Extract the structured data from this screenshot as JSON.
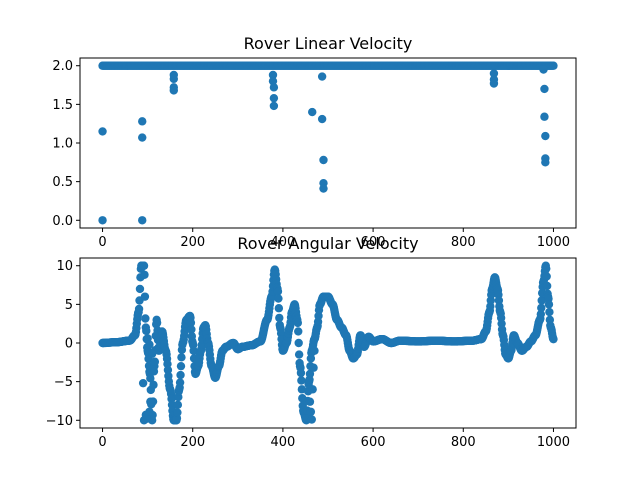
{
  "chart_data": [
    {
      "type": "scatter",
      "title": "Rover Linear Velocity",
      "xlabel": "",
      "ylabel": "",
      "xlim": [
        -50,
        1050
      ],
      "ylim": [
        -0.1,
        2.1
      ],
      "xticks": [
        0,
        200,
        400,
        600,
        800,
        1000
      ],
      "yticks": [
        0.0,
        0.5,
        1.0,
        1.5,
        2.0
      ],
      "ytick_labels": [
        "0.0",
        "0.5",
        "1.0",
        "1.5",
        "2.0"
      ],
      "grid": false,
      "color": "#1f77b4",
      "points": [
        [
          0,
          1.15
        ],
        [
          0,
          0.0
        ],
        [
          88,
          1.28
        ],
        [
          88,
          1.07
        ],
        [
          88,
          0.0
        ],
        [
          158,
          1.88
        ],
        [
          158,
          1.83
        ],
        [
          158,
          1.72
        ],
        [
          158,
          1.68
        ],
        [
          378,
          1.88
        ],
        [
          378,
          1.8
        ],
        [
          380,
          1.72
        ],
        [
          380,
          1.58
        ],
        [
          380,
          1.48
        ],
        [
          465,
          1.4
        ],
        [
          487,
          1.86
        ],
        [
          487,
          1.31
        ],
        [
          490,
          0.78
        ],
        [
          490,
          0.48
        ],
        [
          490,
          0.41
        ],
        [
          868,
          1.9
        ],
        [
          868,
          1.82
        ],
        [
          868,
          1.77
        ],
        [
          978,
          1.95
        ],
        [
          980,
          1.7
        ],
        [
          980,
          1.34
        ],
        [
          982,
          1.09
        ],
        [
          982,
          0.8
        ],
        [
          982,
          0.75
        ]
      ],
      "baseline_segment": {
        "x_start": 0,
        "x_end": 1000,
        "y": 2.0
      }
    },
    {
      "type": "scatter",
      "title": "Rover Angular Velocity",
      "xlabel": "",
      "ylabel": "",
      "xlim": [
        -50,
        1050
      ],
      "ylim": [
        -11,
        11
      ],
      "xticks": [
        0,
        200,
        400,
        600,
        800,
        1000
      ],
      "yticks": [
        -10,
        -5,
        0,
        5,
        10
      ],
      "ytick_labels": [
        "−10",
        "−5",
        "0",
        "5",
        "10"
      ],
      "grid": false,
      "color": "#1f77b4",
      "curve_knots": [
        [
          0,
          0
        ],
        [
          30,
          0.1
        ],
        [
          60,
          0.3
        ],
        [
          72,
          1
        ],
        [
          80,
          4
        ],
        [
          86,
          10
        ],
        [
          92,
          10
        ],
        [
          96,
          2
        ],
        [
          100,
          -1
        ],
        [
          105,
          -4
        ],
        [
          110,
          -10
        ],
        [
          115,
          -3
        ],
        [
          120,
          3
        ],
        [
          125,
          -1
        ],
        [
          132,
          1.5
        ],
        [
          140,
          -1
        ],
        [
          150,
          -6
        ],
        [
          158,
          -10
        ],
        [
          164,
          -10
        ],
        [
          170,
          -6
        ],
        [
          178,
          0
        ],
        [
          186,
          3
        ],
        [
          194,
          3.5
        ],
        [
          200,
          0
        ],
        [
          206,
          -4
        ],
        [
          212,
          -3
        ],
        [
          218,
          -1
        ],
        [
          224,
          2
        ],
        [
          228,
          2.3
        ],
        [
          234,
          0
        ],
        [
          242,
          -3
        ],
        [
          250,
          -4.5
        ],
        [
          258,
          -3
        ],
        [
          266,
          -1
        ],
        [
          274,
          -0.5
        ],
        [
          290,
          0
        ],
        [
          300,
          -0.8
        ],
        [
          310,
          -0.5
        ],
        [
          330,
          -0.3
        ],
        [
          350,
          0.2
        ],
        [
          365,
          3
        ],
        [
          375,
          6
        ],
        [
          382,
          9.5
        ],
        [
          388,
          7
        ],
        [
          394,
          2
        ],
        [
          400,
          -1
        ],
        [
          408,
          0
        ],
        [
          415,
          2
        ],
        [
          420,
          4
        ],
        [
          426,
          5
        ],
        [
          432,
          3
        ],
        [
          438,
          -3
        ],
        [
          446,
          -9
        ],
        [
          452,
          -10
        ],
        [
          458,
          -5
        ],
        [
          464,
          -1
        ],
        [
          470,
          0.5
        ],
        [
          476,
          2
        ],
        [
          482,
          5
        ],
        [
          490,
          6
        ],
        [
          500,
          6
        ],
        [
          510,
          5
        ],
        [
          520,
          3
        ],
        [
          530,
          2
        ],
        [
          540,
          1
        ],
        [
          548,
          -1
        ],
        [
          556,
          -2
        ],
        [
          564,
          -1.5
        ],
        [
          572,
          1
        ],
        [
          580,
          -0.5
        ],
        [
          590,
          0.8
        ],
        [
          600,
          0.2
        ],
        [
          620,
          0.5
        ],
        [
          640,
          0
        ],
        [
          660,
          0.3
        ],
        [
          700,
          0.2
        ],
        [
          740,
          0.3
        ],
        [
          780,
          0.2
        ],
        [
          820,
          0.3
        ],
        [
          840,
          0.5
        ],
        [
          850,
          1.5
        ],
        [
          858,
          4
        ],
        [
          864,
          7
        ],
        [
          870,
          8.5
        ],
        [
          876,
          7
        ],
        [
          882,
          4
        ],
        [
          888,
          1
        ],
        [
          894,
          -1.5
        ],
        [
          900,
          -2
        ],
        [
          906,
          -1
        ],
        [
          912,
          1
        ],
        [
          920,
          0
        ],
        [
          930,
          -1
        ],
        [
          940,
          -0.5
        ],
        [
          950,
          0.2
        ],
        [
          960,
          1
        ],
        [
          970,
          3
        ],
        [
          978,
          8
        ],
        [
          983,
          10
        ],
        [
          988,
          6
        ],
        [
          994,
          2
        ],
        [
          1000,
          0.5
        ]
      ],
      "extra_points": [
        [
          90,
          -5.2
        ],
        [
          92,
          -10
        ],
        [
          96,
          -9.3
        ],
        [
          98,
          -9.8
        ],
        [
          104,
          -8.9
        ],
        [
          106,
          -7.6
        ],
        [
          100,
          0.6
        ],
        [
          104,
          -0.2
        ],
        [
          110,
          -1.4
        ],
        [
          452,
          -9.8
        ],
        [
          460,
          -7.6
        ],
        [
          462,
          -8.9
        ],
        [
          464,
          -9.9
        ],
        [
          470,
          -1.0
        ],
        [
          468,
          -3.2
        ],
        [
          466,
          -6.0
        ]
      ]
    }
  ]
}
